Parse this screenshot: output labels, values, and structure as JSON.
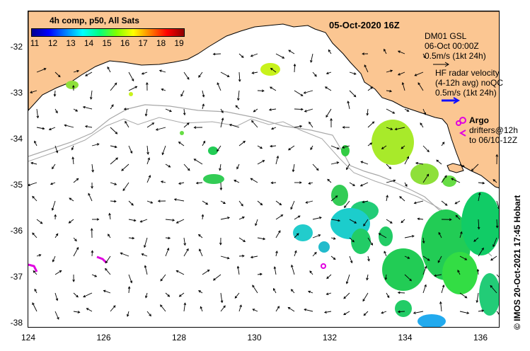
{
  "map": {
    "title_date": "05-Oct-2020 16Z",
    "colorbar": {
      "label": "4h comp, p50, All Sats",
      "ticks": [
        "11",
        "12",
        "13",
        "14",
        "15",
        "16",
        "17",
        "18",
        "19"
      ]
    },
    "legend": {
      "model_name": "DM01 GSL",
      "model_time": "06-Oct 00:00Z",
      "model_scale": "0.5m/s (1kt 24h)",
      "radar_line1": "HF radar velocity",
      "radar_line2": "(4-12h avg) noQC",
      "radar_scale": "0.5m/s (1kt 24h)",
      "argo_label": "Argo",
      "drifters_line1": "drifters@12h",
      "drifters_line2": "to 06/10-12Z"
    },
    "credit": "© IMOS 20-Oct-2021 17:45 Hobart",
    "lat_ticks": [
      "-32",
      "-33",
      "-34",
      "-35",
      "-36",
      "-37",
      "-38"
    ],
    "lon_ticks": [
      "124",
      "126",
      "128",
      "130",
      "132",
      "134",
      "136"
    ],
    "colors": {
      "land": "#fbc692",
      "contour": "#a8a8a8",
      "argo": "#e000e0",
      "radar_arrow": "#1010ff"
    }
  }
}
